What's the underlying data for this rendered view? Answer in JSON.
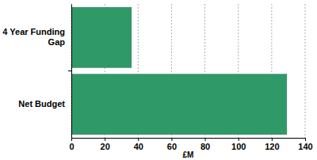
{
  "chart_data": {
    "type": "bar",
    "orientation": "horizontal",
    "categories": [
      "4 Year Funding Gap",
      "Net Budget"
    ],
    "values": [
      36,
      129
    ],
    "color": "#2f9a68",
    "xlabel": "£M",
    "xlim": [
      0,
      140
    ],
    "xticks": [
      0,
      20,
      40,
      60,
      80,
      100,
      120,
      140
    ],
    "grid": true
  }
}
